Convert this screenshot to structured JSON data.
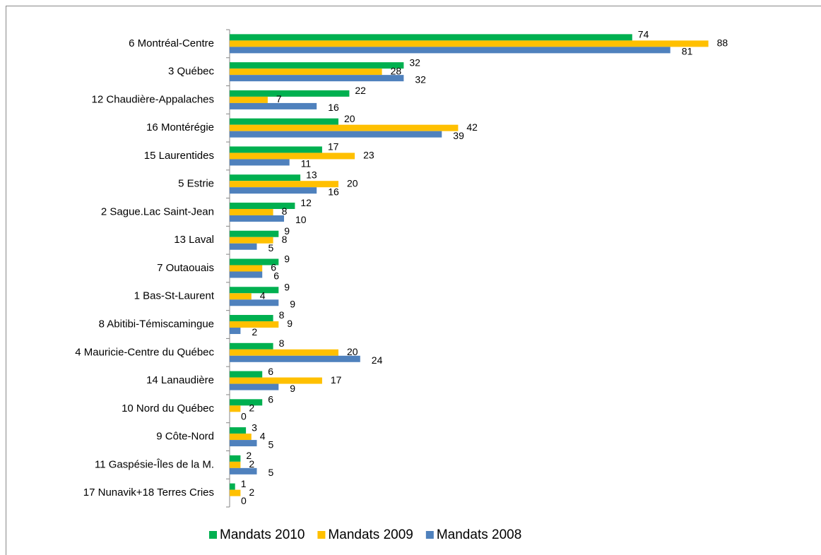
{
  "chart_data": {
    "type": "hbar",
    "categories": [
      "6 Montréal-Centre",
      "3 Québec",
      "12 Chaudière-Appalaches",
      "16 Montérégie",
      "15 Laurentides",
      "5 Estrie",
      "2 Sague.Lac Saint-Jean",
      "13 Laval",
      "7 Outaouais",
      "1 Bas-St-Laurent",
      "8 Abitibi-Témiscamingue",
      "4 Mauricie-Centre du Québec",
      "14 Lanaudière",
      "10 Nord du Québec",
      "9 Côte-Nord",
      "11 Gaspésie-Îles de la M.",
      "17 Nunavik+18 Terres Cries"
    ],
    "series": [
      {
        "name": "Mandats 2010",
        "color": "#00b050",
        "values": [
          74,
          32,
          22,
          20,
          17,
          13,
          12,
          9,
          9,
          9,
          8,
          8,
          6,
          6,
          3,
          2,
          1
        ]
      },
      {
        "name": "Mandats 2009",
        "color": "#ffc000",
        "values": [
          88,
          28,
          7,
          42,
          23,
          20,
          8,
          8,
          6,
          4,
          9,
          20,
          17,
          2,
          4,
          2,
          2
        ]
      },
      {
        "name": "Mandats 2008",
        "color": "#4f81bd",
        "values": [
          81,
          32,
          16,
          39,
          11,
          16,
          10,
          5,
          6,
          9,
          2,
          24,
          9,
          0,
          5,
          5,
          0
        ]
      }
    ],
    "xlim": [
      0,
      100
    ],
    "legend": "bottom"
  }
}
